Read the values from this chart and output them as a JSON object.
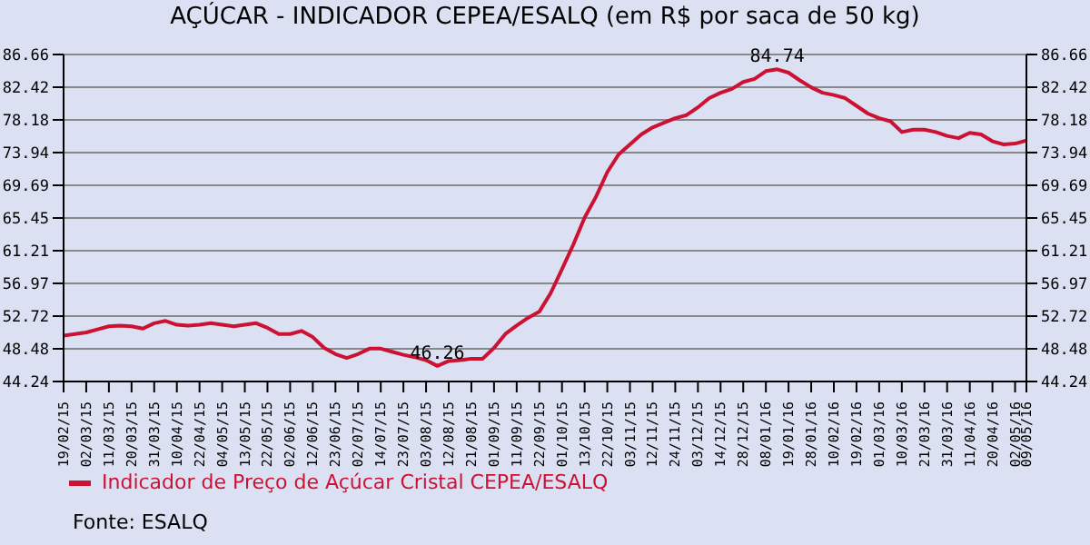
{
  "chart_data": {
    "type": "line",
    "title": "AÇÚCAR - INDICADOR CEPEA/ESALQ (em R$ por saca de 50 kg)",
    "categories": [
      "19/02/15",
      null,
      "02/03/15",
      null,
      "11/03/15",
      null,
      "20/03/15",
      null,
      "31/03/15",
      null,
      "10/04/15",
      null,
      "22/04/15",
      null,
      "04/05/15",
      null,
      "13/05/15",
      null,
      "22/05/15",
      null,
      "02/06/15",
      null,
      "12/06/15",
      null,
      "23/06/15",
      null,
      "02/07/15",
      null,
      "14/07/15",
      null,
      "23/07/15",
      null,
      "03/08/15",
      null,
      "12/08/15",
      null,
      "21/08/15",
      null,
      "01/09/15",
      null,
      "11/09/15",
      null,
      "22/09/15",
      null,
      "01/10/15",
      null,
      "13/10/15",
      null,
      "22/10/15",
      null,
      "03/11/15",
      null,
      "12/11/15",
      null,
      "24/11/15",
      null,
      "03/12/15",
      null,
      "14/12/15",
      null,
      "28/12/15",
      null,
      "08/01/16",
      null,
      "19/01/16",
      null,
      "28/01/16",
      null,
      "10/02/16",
      null,
      "19/02/16",
      null,
      "01/03/16",
      null,
      "10/03/16",
      null,
      "21/03/16",
      null,
      "31/03/16",
      null,
      "11/04/16",
      null,
      "20/04/16",
      null,
      "02/05/16",
      "09/05/16"
    ],
    "series": [
      {
        "name": "Indicador de Preço de Açúcar Cristal CEPEA/ESALQ",
        "color": "#cc1133",
        "values": [
          50.2,
          50.4,
          50.6,
          51.0,
          51.4,
          51.5,
          51.4,
          51.1,
          51.8,
          52.1,
          51.6,
          51.5,
          51.6,
          51.8,
          51.6,
          51.4,
          51.6,
          51.8,
          51.2,
          50.4,
          50.4,
          50.8,
          50.0,
          48.6,
          47.8,
          47.3,
          47.8,
          48.5,
          48.5,
          48.1,
          47.7,
          47.4,
          47.0,
          46.26,
          46.9,
          47.0,
          47.2,
          47.2,
          48.6,
          50.4,
          51.5,
          52.5,
          53.3,
          55.7,
          58.8,
          62.0,
          65.5,
          68.2,
          71.4,
          73.7,
          75.0,
          76.3,
          77.2,
          77.8,
          78.4,
          78.8,
          79.8,
          81.0,
          81.7,
          82.2,
          83.1,
          83.5,
          84.5,
          84.74,
          84.3,
          83.3,
          82.4,
          81.7,
          81.4,
          81.0,
          80.0,
          79.0,
          78.4,
          78.0,
          76.6,
          76.9,
          76.9,
          76.6,
          76.1,
          75.8,
          76.5,
          76.3,
          75.4,
          75.0,
          75.1,
          75.5
        ]
      }
    ],
    "ylim": [
      44.24,
      86.66
    ],
    "yticks": [
      44.24,
      48.48,
      52.72,
      56.97,
      61.21,
      65.45,
      69.69,
      73.94,
      78.18,
      82.42,
      86.66
    ],
    "y2lim": [
      44.24,
      86.66
    ],
    "y2ticks": [
      44.24,
      48.48,
      52.72,
      56.97,
      61.21,
      65.45,
      69.69,
      73.94,
      78.18,
      82.42,
      86.66
    ],
    "grid": "y",
    "legend": "bottom",
    "marker": "none",
    "line_style": "solid",
    "annotations": [
      {
        "text": "46.26",
        "y": 46.26
      },
      {
        "text": "84.74",
        "y": 84.74
      },
      "Fonte: ESALQ"
    ]
  }
}
